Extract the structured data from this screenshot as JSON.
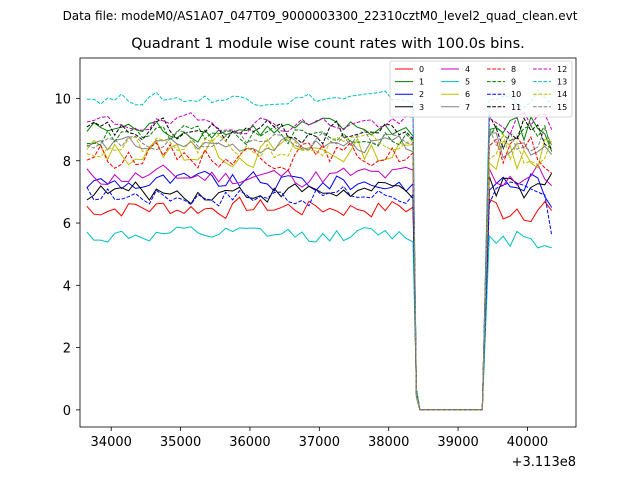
{
  "figure": {
    "suptitle": "Data file: modeM0/AS1A07_047T09_9000003300_22310cztM0_level2_quad_clean.evt"
  },
  "chart_data": {
    "type": "line",
    "title": "Quadrant 1 module wise count rates with 100.0s bins.",
    "xlabel": "",
    "ylabel": "",
    "x_offset_label": "+3.113e8",
    "xlim": [
      33550,
      40700
    ],
    "ylim": [
      -0.55,
      11.3
    ],
    "x_ticks": [
      34000,
      35000,
      36000,
      37000,
      38000,
      39000,
      40000
    ],
    "x_tick_labels": [
      "34000",
      "35000",
      "36000",
      "37000",
      "38000",
      "39000",
      "40000"
    ],
    "y_ticks": [
      0,
      2,
      4,
      6,
      8,
      10
    ],
    "y_tick_labels": [
      "0",
      "2",
      "4",
      "6",
      "8",
      "10"
    ],
    "grid": false,
    "legend_position": "top-right",
    "legend_columns": 4,
    "time_bins": {
      "segment1_start": 33650,
      "segment1_end": 38350,
      "gap_start": 38450,
      "gap_end": 39350,
      "segment2_start": 39450,
      "segment2_end": 40350,
      "step": 100
    },
    "series": [
      {
        "name": "0",
        "color": "#ff0000",
        "dash": "solid",
        "mean": 6.5,
        "spread": 0.5,
        "end_value": 6.4
      },
      {
        "name": "1",
        "color": "#008000",
        "dash": "solid",
        "mean": 9.0,
        "spread": 0.5,
        "end_value": 8.3
      },
      {
        "name": "2",
        "color": "#0000ff",
        "dash": "solid",
        "mean": 7.3,
        "spread": 0.5,
        "end_value": 6.5
      },
      {
        "name": "3",
        "color": "#000000",
        "dash": "solid",
        "mean": 7.0,
        "spread": 0.5,
        "end_value": 7.6
      },
      {
        "name": "4",
        "color": "#bf00bf",
        "dash": "solid",
        "mean": 7.5,
        "spread": 0.5,
        "end_value": 7.2
      },
      {
        "name": "5",
        "color": "#00bfbf",
        "dash": "solid",
        "mean": 5.6,
        "spread": 0.4,
        "end_value": 5.2
      },
      {
        "name": "6",
        "color": "#bfbf00",
        "dash": "solid",
        "mean": 8.3,
        "spread": 0.7,
        "end_value": 8.6
      },
      {
        "name": "7",
        "color": "#808080",
        "dash": "solid",
        "mean": 8.5,
        "spread": 0.4,
        "end_value": 8.2
      },
      {
        "name": "8",
        "color": "#ff0000",
        "dash": "dashed",
        "mean": 8.2,
        "spread": 0.6,
        "end_value": 7.6
      },
      {
        "name": "9",
        "color": "#008000",
        "dash": "dashed",
        "mean": 8.8,
        "spread": 0.5,
        "end_value": 8.3
      },
      {
        "name": "10",
        "color": "#0000ff",
        "dash": "dashed",
        "mean": 6.9,
        "spread": 0.5,
        "end_value": 5.6
      },
      {
        "name": "11",
        "color": "#000000",
        "dash": "dashed",
        "mean": 8.9,
        "spread": 0.6,
        "end_value": 8.4
      },
      {
        "name": "12",
        "color": "#bf00bf",
        "dash": "dashed",
        "mean": 9.2,
        "spread": 0.4,
        "end_value": 9.0
      },
      {
        "name": "13",
        "color": "#00bfbf",
        "dash": "dashed",
        "mean": 10.0,
        "spread": 0.3,
        "end_value": 9.8
      },
      {
        "name": "14",
        "color": "#bfbf00",
        "dash": "dashed",
        "mean": 8.4,
        "spread": 0.6,
        "end_value": 8.7
      },
      {
        "name": "15",
        "color": "#808080",
        "dash": "dashed",
        "mean": 8.7,
        "spread": 0.4,
        "end_value": 8.5
      }
    ]
  }
}
